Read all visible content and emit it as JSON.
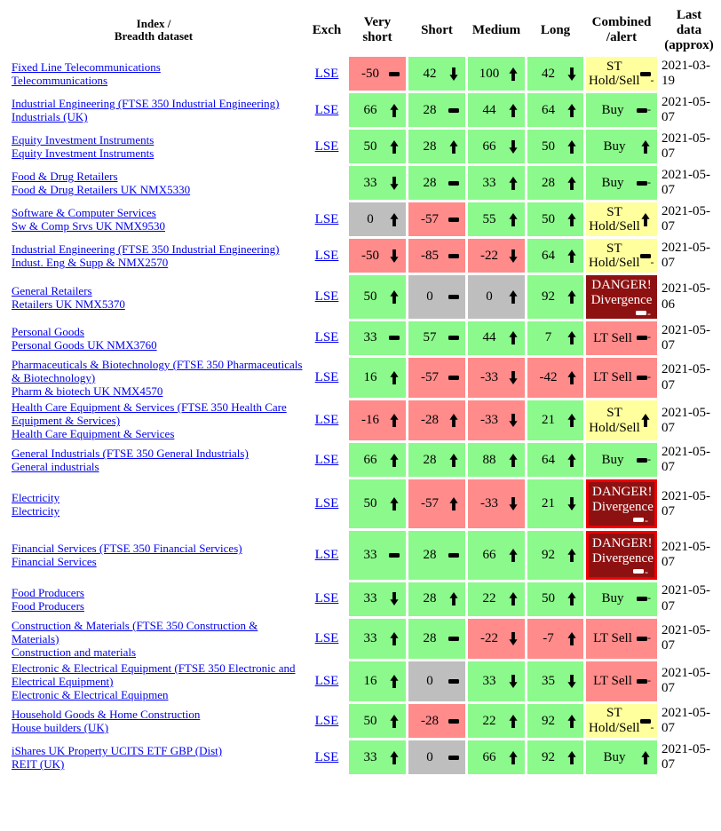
{
  "header": {
    "index": "Index /\nBreadth dataset",
    "exch": "Exch",
    "very_short": "Very\nshort",
    "short": "Short",
    "medium": "Medium",
    "long": "Long",
    "combined": "Combined\n/alert",
    "last": "Last\ndata\n(approx)"
  },
  "colors": {
    "green": "#8bf98b",
    "red": "#ff8b8b",
    "gray": "#bebebe",
    "yellow": "#ffff9d",
    "danger_bg": "#8e1111",
    "danger_border": "#ee0000",
    "link": "#0000ee"
  },
  "rows": [
    {
      "index": "Fixed Line Telecommunications",
      "dataset": "Telecommunications",
      "exch": "LSE",
      "values": [
        {
          "v": "-50",
          "t": "flat",
          "c": "red"
        },
        {
          "v": "42",
          "t": "down",
          "c": "green"
        },
        {
          "v": "100",
          "t": "up",
          "c": "green"
        },
        {
          "v": "42",
          "t": "down",
          "c": "green"
        }
      ],
      "combined": {
        "label": "ST Hold/Sell",
        "t": "flat",
        "c": "yellow"
      },
      "last": "2021-03-19"
    },
    {
      "index": "Industrial Engineering (FTSE 350 Industrial Engineering)",
      "dataset": "Industrials (UK)",
      "exch": "LSE",
      "values": [
        {
          "v": "66",
          "t": "up",
          "c": "green"
        },
        {
          "v": "28",
          "t": "flat",
          "c": "green"
        },
        {
          "v": "44",
          "t": "up",
          "c": "green"
        },
        {
          "v": "64",
          "t": "up",
          "c": "green"
        }
      ],
      "combined": {
        "label": "Buy",
        "t": "flat",
        "c": "green"
      },
      "last": "2021-05-07"
    },
    {
      "index": "Equity Investment Instruments",
      "dataset": "Equity Investment Instruments",
      "exch": "LSE",
      "values": [
        {
          "v": "50",
          "t": "up",
          "c": "green"
        },
        {
          "v": "28",
          "t": "up",
          "c": "green"
        },
        {
          "v": "66",
          "t": "down",
          "c": "green"
        },
        {
          "v": "50",
          "t": "up",
          "c": "green"
        }
      ],
      "combined": {
        "label": "Buy",
        "t": "up",
        "c": "green"
      },
      "last": "2021-05-07"
    },
    {
      "index": "Food & Drug Retailers",
      "dataset": "Food & Drug Retailers UK NMX5330",
      "exch": "",
      "values": [
        {
          "v": "33",
          "t": "down",
          "c": "green"
        },
        {
          "v": "28",
          "t": "flat",
          "c": "green"
        },
        {
          "v": "33",
          "t": "up",
          "c": "green"
        },
        {
          "v": "28",
          "t": "up",
          "c": "green"
        }
      ],
      "combined": {
        "label": "Buy",
        "t": "flat",
        "c": "green"
      },
      "last": "2021-05-07"
    },
    {
      "index": "Software & Computer Services",
      "dataset": "Sw & Comp Srvs UK NMX9530",
      "exch": "LSE",
      "values": [
        {
          "v": "0",
          "t": "up",
          "c": "gray"
        },
        {
          "v": "-57",
          "t": "flat",
          "c": "red"
        },
        {
          "v": "55",
          "t": "up",
          "c": "green"
        },
        {
          "v": "50",
          "t": "up",
          "c": "green"
        }
      ],
      "combined": {
        "label": "ST Hold/Sell",
        "t": "up",
        "c": "yellow"
      },
      "last": "2021-05-07"
    },
    {
      "index": "Industrial Engineering (FTSE 350 Industrial Engineering)",
      "dataset": "Indust. Eng & Supp & NMX2570",
      "exch": "LSE",
      "values": [
        {
          "v": "-50",
          "t": "down",
          "c": "red"
        },
        {
          "v": "-85",
          "t": "flat",
          "c": "red"
        },
        {
          "v": "-22",
          "t": "down",
          "c": "red"
        },
        {
          "v": "64",
          "t": "up",
          "c": "green"
        }
      ],
      "combined": {
        "label": "ST Hold/Sell",
        "t": "flat",
        "c": "yellow"
      },
      "last": "2021-05-07"
    },
    {
      "index": "General Retailers",
      "dataset": "Retailers UK NMX5370",
      "exch": "LSE",
      "values": [
        {
          "v": "50",
          "t": "up",
          "c": "green"
        },
        {
          "v": "0",
          "t": "flat",
          "c": "gray"
        },
        {
          "v": "0",
          "t": "up",
          "c": "gray"
        },
        {
          "v": "92",
          "t": "up",
          "c": "green"
        }
      ],
      "combined": {
        "label": "DANGER! Divergence",
        "t": "flat",
        "c": "danger"
      },
      "last": "2021-05-06"
    },
    {
      "index": "Personal Goods",
      "dataset": "Personal Goods UK NMX3760",
      "exch": "LSE",
      "values": [
        {
          "v": "33",
          "t": "flat",
          "c": "green"
        },
        {
          "v": "57",
          "t": "flat",
          "c": "green"
        },
        {
          "v": "44",
          "t": "up",
          "c": "green"
        },
        {
          "v": "7",
          "t": "up",
          "c": "green"
        }
      ],
      "combined": {
        "label": "LT Sell",
        "t": "flat",
        "c": "salmon"
      },
      "last": "2021-05-07"
    },
    {
      "index": "Pharmaceuticals & Biotechnology (FTSE 350 Pharmaceuticals & Biotechnology)",
      "dataset": "Pharm & biotech UK NMX4570",
      "exch": "LSE",
      "values": [
        {
          "v": "16",
          "t": "up",
          "c": "green"
        },
        {
          "v": "-57",
          "t": "flat",
          "c": "red"
        },
        {
          "v": "-33",
          "t": "down",
          "c": "red"
        },
        {
          "v": "-42",
          "t": "up",
          "c": "red"
        }
      ],
      "combined": {
        "label": "LT Sell",
        "t": "flat",
        "c": "salmon"
      },
      "last": "2021-05-07"
    },
    {
      "index": "Health Care Equipment & Services (FTSE 350 Health Care Equipment & Services)",
      "dataset": "Health Care Equipment & Services",
      "exch": "LSE",
      "values": [
        {
          "v": "-16",
          "t": "up",
          "c": "red"
        },
        {
          "v": "-28",
          "t": "up",
          "c": "red"
        },
        {
          "v": "-33",
          "t": "down",
          "c": "red"
        },
        {
          "v": "21",
          "t": "up",
          "c": "green"
        }
      ],
      "combined": {
        "label": "ST Hold/Sell",
        "t": "up",
        "c": "yellow"
      },
      "last": "2021-05-07"
    },
    {
      "index": "General Industrials (FTSE 350 General Industrials)",
      "dataset": "General industrials",
      "exch": "LSE",
      "values": [
        {
          "v": "66",
          "t": "up",
          "c": "green"
        },
        {
          "v": "28",
          "t": "up",
          "c": "green"
        },
        {
          "v": "88",
          "t": "up",
          "c": "green"
        },
        {
          "v": "64",
          "t": "up",
          "c": "green"
        }
      ],
      "combined": {
        "label": "Buy",
        "t": "flat",
        "c": "green"
      },
      "last": "2021-05-07"
    },
    {
      "index": "Electricity",
      "dataset": "Electricity",
      "exch": "LSE",
      "values": [
        {
          "v": "50",
          "t": "up",
          "c": "green"
        },
        {
          "v": "-57",
          "t": "up",
          "c": "red"
        },
        {
          "v": "-33",
          "t": "down",
          "c": "red"
        },
        {
          "v": "21",
          "t": "down",
          "c": "green"
        }
      ],
      "combined": {
        "label": "DANGER! Divergence",
        "t": "flat",
        "c": "danger_border"
      },
      "last": "2021-05-07"
    },
    {
      "index": "Financial Services (FTSE 350 Financial Services)",
      "dataset": "Financial Services",
      "exch": "LSE",
      "values": [
        {
          "v": "33",
          "t": "flat",
          "c": "green"
        },
        {
          "v": "28",
          "t": "flat",
          "c": "green"
        },
        {
          "v": "66",
          "t": "up",
          "c": "green"
        },
        {
          "v": "92",
          "t": "up",
          "c": "green"
        }
      ],
      "combined": {
        "label": "DANGER! Divergence",
        "t": "flat",
        "c": "danger_border"
      },
      "last": "2021-05-07"
    },
    {
      "index": "Food Producers",
      "dataset": "Food Producers",
      "exch": "LSE",
      "values": [
        {
          "v": "33",
          "t": "down",
          "c": "green"
        },
        {
          "v": "28",
          "t": "up",
          "c": "green"
        },
        {
          "v": "22",
          "t": "up",
          "c": "green"
        },
        {
          "v": "50",
          "t": "up",
          "c": "green"
        }
      ],
      "combined": {
        "label": "Buy",
        "t": "flat",
        "c": "green"
      },
      "last": "2021-05-07"
    },
    {
      "index": "Construction & Materials (FTSE 350 Construction & Materials)",
      "dataset": "Construction and materials",
      "exch": "LSE",
      "values": [
        {
          "v": "33",
          "t": "up",
          "c": "green"
        },
        {
          "v": "28",
          "t": "flat",
          "c": "green"
        },
        {
          "v": "-22",
          "t": "down",
          "c": "red"
        },
        {
          "v": "-7",
          "t": "up",
          "c": "red"
        }
      ],
      "combined": {
        "label": "LT Sell",
        "t": "flat",
        "c": "salmon"
      },
      "last": "2021-05-07"
    },
    {
      "index": "Electronic & Electrical Equipment (FTSE 350 Electronic and Electrical Equipment)",
      "dataset": "Electronic & Electrical Equipmen",
      "exch": "LSE",
      "values": [
        {
          "v": "16",
          "t": "up",
          "c": "green"
        },
        {
          "v": "0",
          "t": "flat",
          "c": "gray"
        },
        {
          "v": "33",
          "t": "down",
          "c": "green"
        },
        {
          "v": "35",
          "t": "down",
          "c": "green"
        }
      ],
      "combined": {
        "label": "LT Sell",
        "t": "flat",
        "c": "salmon"
      },
      "last": "2021-05-07"
    },
    {
      "index": "Household Goods & Home Construction",
      "dataset": "House builders (UK)",
      "exch": "LSE",
      "values": [
        {
          "v": "50",
          "t": "up",
          "c": "green"
        },
        {
          "v": "-28",
          "t": "flat",
          "c": "red"
        },
        {
          "v": "22",
          "t": "up",
          "c": "green"
        },
        {
          "v": "92",
          "t": "up",
          "c": "green"
        }
      ],
      "combined": {
        "label": "ST Hold/Sell",
        "t": "flat",
        "c": "yellow"
      },
      "last": "2021-05-07"
    },
    {
      "index": "iShares UK Property UCITS ETF GBP (Dist)",
      "dataset": "REIT (UK)",
      "exch": "LSE",
      "values": [
        {
          "v": "33",
          "t": "up",
          "c": "green"
        },
        {
          "v": "0",
          "t": "flat",
          "c": "gray"
        },
        {
          "v": "66",
          "t": "up",
          "c": "green"
        },
        {
          "v": "92",
          "t": "up",
          "c": "green"
        }
      ],
      "combined": {
        "label": "Buy",
        "t": "up",
        "c": "green"
      },
      "last": "2021-05-07"
    }
  ]
}
